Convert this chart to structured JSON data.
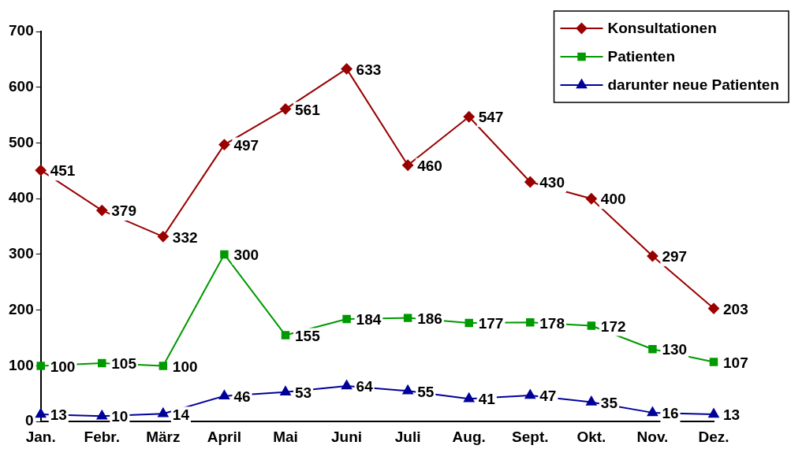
{
  "chart_data": {
    "type": "line",
    "categories": [
      "Jan.",
      "Febr.",
      "März",
      "April",
      "Mai",
      "Juni",
      "Juli",
      "Aug.",
      "Sept.",
      "Okt.",
      "Nov.",
      "Dez."
    ],
    "series": [
      {
        "name": "Konsultationen",
        "color": "#990000",
        "marker": "diamond",
        "values": [
          451,
          379,
          332,
          497,
          561,
          633,
          460,
          547,
          430,
          400,
          297,
          203
        ]
      },
      {
        "name": "Patienten",
        "color": "#009900",
        "marker": "square",
        "values": [
          100,
          105,
          100,
          300,
          155,
          184,
          186,
          177,
          178,
          172,
          130,
          107
        ]
      },
      {
        "name": "darunter neue Patienten",
        "color": "#000099",
        "marker": "triangle",
        "values": [
          13,
          10,
          14,
          46,
          53,
          64,
          55,
          41,
          47,
          35,
          16,
          13
        ]
      }
    ],
    "ylim": [
      0,
      700
    ],
    "yticks": [
      0,
      100,
      200,
      300,
      400,
      500,
      600,
      700
    ],
    "grid": false,
    "legend": "top right",
    "data_labels": true,
    "line_style": "solid"
  }
}
